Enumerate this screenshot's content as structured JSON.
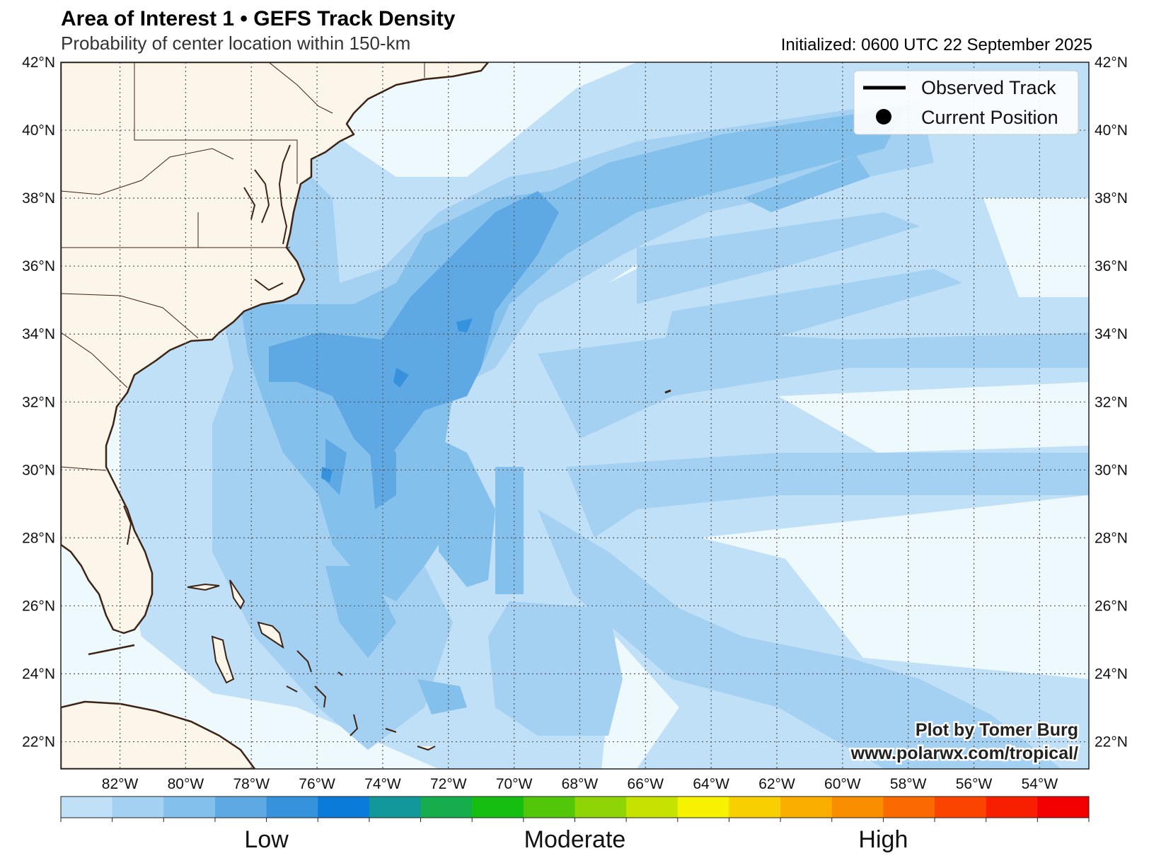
{
  "header": {
    "title": "Area of Interest 1 • GEFS Track Density",
    "subtitle": "Probability of center location within 150-km",
    "initialized": "Initialized: 0600 UTC 22 September 2025"
  },
  "map": {
    "lon_range": [
      -83.8,
      -52.5
    ],
    "lat_range": [
      21.2,
      42.0
    ],
    "lat_ticks": [
      {
        "v": 42,
        "label": "42°N"
      },
      {
        "v": 40,
        "label": "40°N"
      },
      {
        "v": 38,
        "label": "38°N"
      },
      {
        "v": 36,
        "label": "36°N"
      },
      {
        "v": 34,
        "label": "34°N"
      },
      {
        "v": 32,
        "label": "32°N"
      },
      {
        "v": 30,
        "label": "30°N"
      },
      {
        "v": 28,
        "label": "28°N"
      },
      {
        "v": 26,
        "label": "26°N"
      },
      {
        "v": 24,
        "label": "24°N"
      },
      {
        "v": 22,
        "label": "22°N"
      }
    ],
    "lon_ticks": [
      {
        "v": -82,
        "label": "82°W"
      },
      {
        "v": -80,
        "label": "80°W"
      },
      {
        "v": -78,
        "label": "78°W"
      },
      {
        "v": -76,
        "label": "76°W"
      },
      {
        "v": -74,
        "label": "74°W"
      },
      {
        "v": -72,
        "label": "72°W"
      },
      {
        "v": -70,
        "label": "70°W"
      },
      {
        "v": -68,
        "label": "68°W"
      },
      {
        "v": -66,
        "label": "66°W"
      },
      {
        "v": -64,
        "label": "64°W"
      },
      {
        "v": -62,
        "label": "62°W"
      },
      {
        "v": -60,
        "label": "60°W"
      },
      {
        "v": -58,
        "label": "58°W"
      },
      {
        "v": -56,
        "label": "56°W"
      },
      {
        "v": -54,
        "label": "54°W"
      }
    ],
    "ocean_color": "#eef9fd",
    "land_color": "#fbf5ea",
    "coast_color": "#3d2314",
    "grid": "dotted"
  },
  "legend": {
    "items": [
      {
        "label": "Observed Track",
        "symbol": "line"
      },
      {
        "label": "Current Position",
        "symbol": "dot"
      }
    ],
    "placement": "top-right"
  },
  "colorbar": {
    "colors": [
      "#bfe0f7",
      "#a4d0f2",
      "#84c0ec",
      "#5ea9e4",
      "#3692dc",
      "#0a7bd8",
      "#12979a",
      "#16ae4c",
      "#16be12",
      "#52c70a",
      "#8fd404",
      "#c5e200",
      "#f6f200",
      "#f8cf00",
      "#f9ae00",
      "#f98e00",
      "#fa6a00",
      "#fb4400",
      "#f81e00",
      "#f20000"
    ],
    "labels": [
      {
        "text": "Low",
        "at": 0.2
      },
      {
        "text": "Moderate",
        "at": 0.5
      },
      {
        "text": "High",
        "at": 0.8
      }
    ]
  },
  "credit": {
    "line1": "Plot by Tomer Burg",
    "line2": "www.polarwx.com/tropical/"
  }
}
